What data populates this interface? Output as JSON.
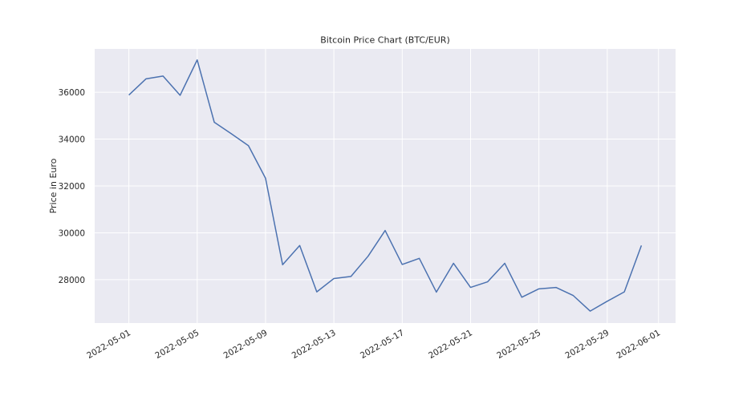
{
  "chart_data": {
    "type": "line",
    "title": "Bitcoin Price Chart (BTC/EUR)",
    "xlabel": "",
    "ylabel": "Price in Euro",
    "grid": true,
    "legend": "none",
    "background_color": "#eaeaf2",
    "grid_color": "#ffffff",
    "line_color": "#4c72b0",
    "xlim": [
      "2022-04-29",
      "2022-06-02"
    ],
    "ylim": [
      26150,
      37850
    ],
    "x_ticks": [
      "2022-05-01",
      "2022-05-05",
      "2022-05-09",
      "2022-05-13",
      "2022-05-17",
      "2022-05-21",
      "2022-05-25",
      "2022-05-29",
      "2022-06-01"
    ],
    "y_ticks": [
      28000,
      30000,
      32000,
      34000,
      36000
    ],
    "y_tick_labels": [
      "28000",
      "30000",
      "32000",
      "34000",
      "36000"
    ],
    "series": [
      {
        "x": [
          "2022-05-01",
          "2022-05-02",
          "2022-05-03",
          "2022-05-04",
          "2022-05-05",
          "2022-05-06",
          "2022-05-07",
          "2022-05-08",
          "2022-05-09",
          "2022-05-10",
          "2022-05-11",
          "2022-05-12",
          "2022-05-13",
          "2022-05-14",
          "2022-05-15",
          "2022-05-16",
          "2022-05-17",
          "2022-05-18",
          "2022-05-19",
          "2022-05-20",
          "2022-05-21",
          "2022-05-22",
          "2022-05-23",
          "2022-05-24",
          "2022-05-25",
          "2022-05-26",
          "2022-05-27",
          "2022-05-28",
          "2022-05-29",
          "2022-05-30",
          "2022-05-31"
        ],
        "y": [
          35880,
          36570,
          36690,
          35870,
          37380,
          34720,
          34230,
          33720,
          32330,
          28640,
          29460,
          27480,
          28050,
          28140,
          29000,
          30100,
          28650,
          28910,
          27470,
          28700,
          27670,
          27910,
          28700,
          27250,
          27610,
          27670,
          27330,
          26660,
          27080,
          27480,
          29460
        ]
      }
    ]
  }
}
